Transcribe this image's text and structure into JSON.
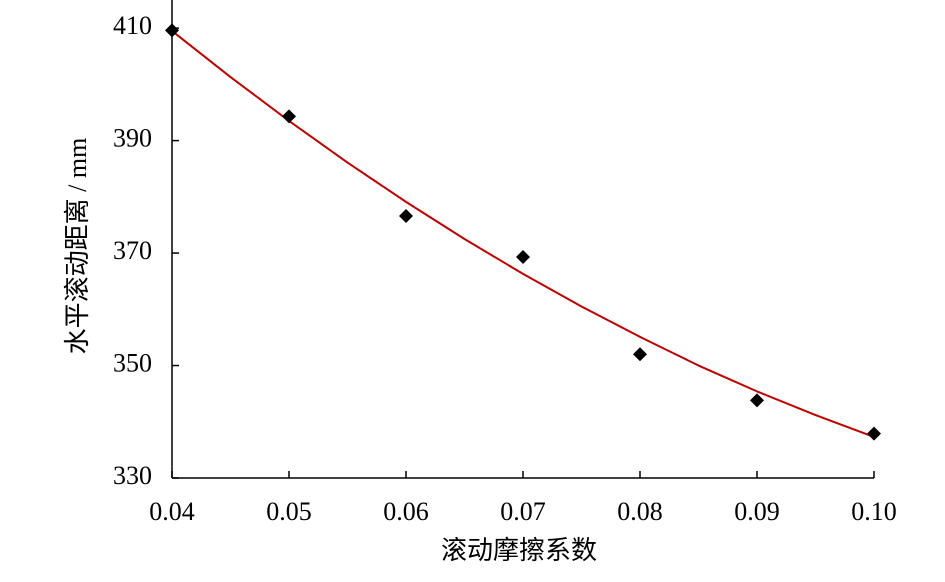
{
  "chart_data": {
    "type": "scatter",
    "x_label": "滚动摩擦系数",
    "y_label": "水平滚动距离 / mm",
    "series": [
      {
        "type": "scatter",
        "color": "#000000",
        "x": [
          0.04,
          0.05,
          0.06,
          0.07,
          0.08,
          0.09,
          0.1
        ],
        "values": [
          409.6,
          394.3,
          376.6,
          369.3,
          352.0,
          343.8,
          337.9
        ]
      },
      {
        "type": "line",
        "color": "#c00000",
        "x": [
          0.04,
          0.045,
          0.05,
          0.055,
          0.06,
          0.065,
          0.07,
          0.075,
          0.08,
          0.085,
          0.09,
          0.095,
          0.1
        ],
        "values": [
          409.5,
          401.3,
          393.5,
          386.1,
          379.1,
          372.5,
          366.3,
          360.5,
          355.1,
          350.0,
          345.4,
          341.2,
          337.3
        ]
      }
    ],
    "xlim": [
      0.04,
      0.1
    ],
    "xticks": [
      0.04,
      0.05,
      0.06,
      0.07,
      0.08,
      0.09,
      {
        "value": 0.1,
        "label": "0.10"
      }
    ],
    "ylim": [
      330,
      415
    ],
    "yticks": [
      330,
      350,
      370,
      390,
      410
    ]
  }
}
